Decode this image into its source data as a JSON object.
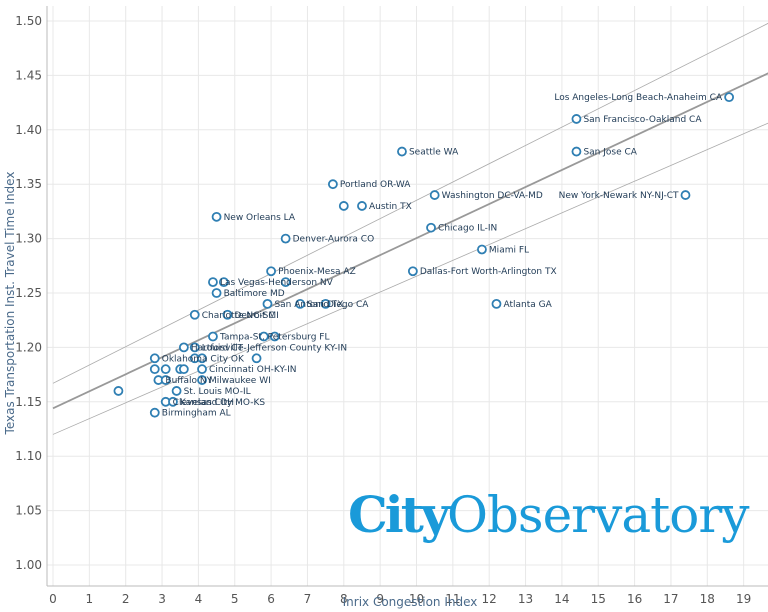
{
  "chart_data": {
    "type": "scatter",
    "xlabel": "Inrix Congestion Index",
    "ylabel": "Texas Transportation Inst. Travel Time Index",
    "xlim": [
      0,
      19.8
    ],
    "ylim": [
      0.98,
      1.52
    ],
    "x_ticks": [
      "0",
      "1",
      "2",
      "3",
      "4",
      "5",
      "6",
      "7",
      "8",
      "9",
      "10",
      "11",
      "12",
      "13",
      "14",
      "15",
      "16",
      "17",
      "18",
      "19"
    ],
    "y_ticks": [
      "1.00",
      "1.05",
      "1.10",
      "1.15",
      "1.20",
      "1.25",
      "1.30",
      "1.35",
      "1.40",
      "1.45",
      "1.50"
    ],
    "grid": true,
    "trend_line": {
      "intercept": 1.144,
      "slope": 0.01565
    },
    "confidence_band": {
      "upper_at_x0": 1.167,
      "upper_at_xmax": 1.5,
      "lower_at_x0": 1.12,
      "lower_at_xmax": 1.408
    },
    "points": [
      {
        "label": "Los Angeles-Long Beach-Anaheim CA",
        "x": 18.6,
        "y": 1.43
      },
      {
        "label": "San Francisco-Oakland CA",
        "x": 14.4,
        "y": 1.41
      },
      {
        "label": "San Jose CA",
        "x": 14.4,
        "y": 1.38
      },
      {
        "label": "New York-Newark NY-NJ-CT",
        "x": 17.4,
        "y": 1.34
      },
      {
        "label": "Seattle WA",
        "x": 9.6,
        "y": 1.38
      },
      {
        "label": "Portland OR-WA",
        "x": 7.7,
        "y": 1.35
      },
      {
        "label": "Austin TX",
        "x": 8.5,
        "y": 1.33
      },
      {
        "label": "",
        "x": 8.0,
        "y": 1.33
      },
      {
        "label": "Washington DC-VA-MD",
        "x": 10.5,
        "y": 1.34
      },
      {
        "label": "New Orleans LA",
        "x": 4.5,
        "y": 1.32
      },
      {
        "label": "Chicago IL-IN",
        "x": 10.4,
        "y": 1.31
      },
      {
        "label": "Denver-Aurora CO",
        "x": 6.4,
        "y": 1.3
      },
      {
        "label": "Miami FL",
        "x": 11.8,
        "y": 1.29
      },
      {
        "label": "Phoenix-Mesa AZ",
        "x": 6.0,
        "y": 1.27
      },
      {
        "label": "Dallas-Fort Worth-Arlington TX",
        "x": 9.9,
        "y": 1.27
      },
      {
        "label": "Las Vegas-Henderson NV",
        "x": 4.4,
        "y": 1.26
      },
      {
        "label": "",
        "x": 4.7,
        "y": 1.26
      },
      {
        "label": "",
        "x": 6.4,
        "y": 1.26
      },
      {
        "label": "Baltimore MD",
        "x": 4.5,
        "y": 1.25
      },
      {
        "label": "San Antonio TX",
        "x": 5.9,
        "y": 1.24
      },
      {
        "label": "San Diego CA",
        "x": 6.8,
        "y": 1.24
      },
      {
        "label": "",
        "x": 7.5,
        "y": 1.24
      },
      {
        "label": "Atlanta GA",
        "x": 12.2,
        "y": 1.24
      },
      {
        "label": "Detroit MI",
        "x": 4.8,
        "y": 1.23
      },
      {
        "label": "Charlotte NC-SC",
        "x": 3.9,
        "y": 1.23
      },
      {
        "label": "Tampa-St. Petersburg FL",
        "x": 4.4,
        "y": 1.21
      },
      {
        "label": "",
        "x": 5.8,
        "y": 1.21
      },
      {
        "label": "",
        "x": 6.1,
        "y": 1.21
      },
      {
        "label": "Hartford CT",
        "x": 3.6,
        "y": 1.2
      },
      {
        "label": "Louisville-Jefferson County KY-IN",
        "x": 3.9,
        "y": 1.2
      },
      {
        "label": "Oklahoma City OK",
        "x": 2.8,
        "y": 1.19
      },
      {
        "label": "",
        "x": 3.9,
        "y": 1.19
      },
      {
        "label": "",
        "x": 4.1,
        "y": 1.19
      },
      {
        "label": "",
        "x": 5.6,
        "y": 1.19
      },
      {
        "label": "Cincinnati OH-KY-IN",
        "x": 4.1,
        "y": 1.18
      },
      {
        "label": "",
        "x": 2.8,
        "y": 1.18
      },
      {
        "label": "",
        "x": 3.1,
        "y": 1.18
      },
      {
        "label": "",
        "x": 3.5,
        "y": 1.18
      },
      {
        "label": "",
        "x": 3.6,
        "y": 1.18
      },
      {
        "label": "Buffalo NY",
        "x": 2.9,
        "y": 1.17
      },
      {
        "label": "",
        "x": 3.1,
        "y": 1.17
      },
      {
        "label": "Milwaukee WI",
        "x": 4.1,
        "y": 1.17
      },
      {
        "label": "St. Louis MO-IL",
        "x": 3.4,
        "y": 1.16
      },
      {
        "label": "",
        "x": 1.8,
        "y": 1.16
      },
      {
        "label": "Cleveland OH",
        "x": 3.1,
        "y": 1.15
      },
      {
        "label": "Kansas City MO-KS",
        "x": 3.3,
        "y": 1.15
      },
      {
        "label": "Birmingham AL",
        "x": 2.8,
        "y": 1.14
      }
    ]
  },
  "logo": {
    "part1": "City",
    "part2": "Observatory"
  },
  "colors": {
    "marker": "#2f7fb3",
    "trend": "#999999",
    "band": "#aaaaaa",
    "grid": "#e8e8e8",
    "logo": "#1a9ad9"
  }
}
